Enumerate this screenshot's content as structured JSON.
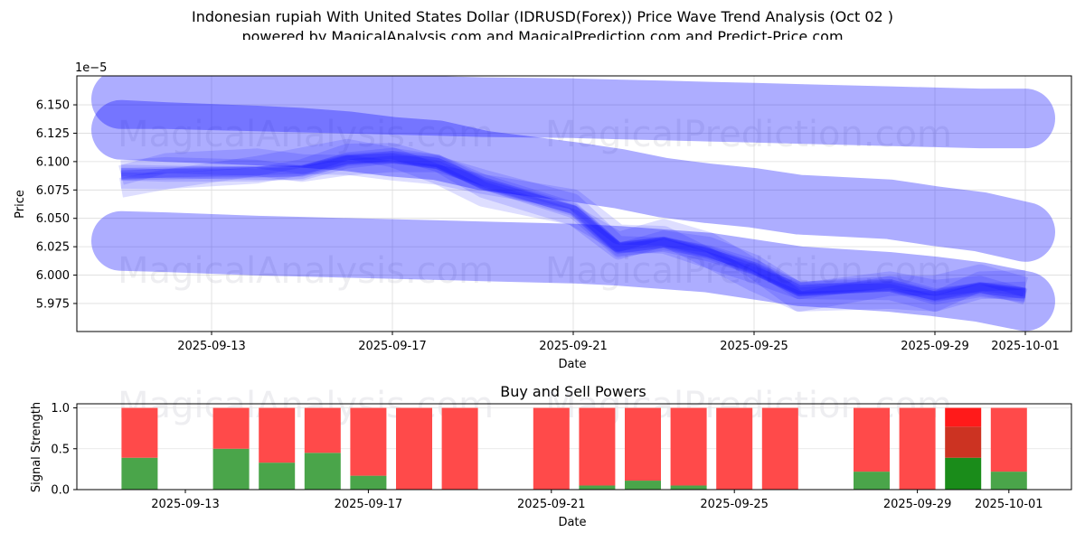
{
  "header": {
    "title": "Indonesian rupiah With United States Dollar (IDRUSD(Forex)) Price Wave Trend Analysis (Oct 02 )",
    "subtitle": "powered by MagicalAnalysis.com and MagicalPrediction.com and Predict-Price.com"
  },
  "watermarks": [
    "MagicalAnalysis.com",
    "MagicalPrediction.com"
  ],
  "colors": {
    "band": "#0000ff",
    "buy": "#4aa54a",
    "sell": "#ff4a4a",
    "buy_strong": "#1a8c1a",
    "sell_mid": "#cc3322",
    "sell_strong": "#ff1a1a"
  },
  "chart_data": [
    {
      "type": "area",
      "title": "",
      "xlabel": "Date",
      "ylabel": "Price",
      "y_scale_label": "1e−5",
      "ylim": [
        5.9503,
        6.1755
      ],
      "yticks": [
        5.975,
        6.0,
        6.025,
        6.05,
        6.075,
        6.1,
        6.125,
        6.15
      ],
      "ytick_labels": [
        "5.975",
        "6.000",
        "6.025",
        "6.050",
        "6.075",
        "6.100",
        "6.125",
        "6.150"
      ],
      "xlim": [
        "2025-09-10",
        "2025-10-02"
      ],
      "xticks": [
        "2025-09-13",
        "2025-09-17",
        "2025-09-21",
        "2025-09-25",
        "2025-09-29",
        "2025-10-01"
      ],
      "grid": true,
      "x_days": [
        "2025-09-11",
        "2025-09-12",
        "2025-09-14",
        "2025-09-15",
        "2025-09-16",
        "2025-09-17",
        "2025-09-18",
        "2025-09-19",
        "2025-09-21",
        "2025-09-22",
        "2025-09-23",
        "2025-09-24",
        "2025-09-25",
        "2025-09-26",
        "2025-09-28",
        "2025-09-29",
        "2025-09-30",
        "2025-10-01"
      ],
      "series": [
        {
          "name": "upper-wave",
          "values": [
            6.155,
            6.155,
            6.153,
            6.152,
            6.151,
            6.15,
            6.149,
            6.148,
            6.147,
            6.146,
            6.145,
            6.144,
            6.143,
            6.142,
            6.14,
            6.139,
            6.138,
            6.138
          ]
        },
        {
          "name": "middle-wave",
          "values": [
            6.128,
            6.126,
            6.123,
            6.121,
            6.118,
            6.113,
            6.11,
            6.101,
            6.091,
            6.085,
            6.077,
            6.072,
            6.068,
            6.062,
            6.058,
            6.052,
            6.047,
            6.038
          ]
        },
        {
          "name": "lower-wave",
          "values": [
            6.03,
            6.029,
            6.026,
            6.025,
            6.024,
            6.023,
            6.022,
            6.021,
            6.019,
            6.017,
            6.014,
            6.011,
            6.005,
            5.999,
            5.994,
            5.99,
            5.985,
            5.977
          ]
        },
        {
          "name": "price-core",
          "values": [
            6.088,
            6.09,
            6.092,
            6.093,
            6.102,
            6.103,
            6.097,
            6.08,
            6.058,
            6.025,
            6.03,
            6.02,
            6.005,
            5.985,
            5.99,
            5.982,
            5.99,
            5.985
          ]
        }
      ]
    },
    {
      "type": "bar",
      "title": "Buy and Sell Powers",
      "xlabel": "Date",
      "ylabel": "Signal Strength",
      "ylim": [
        0,
        1.05
      ],
      "yticks": [
        0.0,
        0.5,
        1.0
      ],
      "ytick_labels": [
        "0.0",
        "0.5",
        "1.0"
      ],
      "xticks": [
        "2025-09-13",
        "2025-09-17",
        "2025-09-21",
        "2025-09-25",
        "2025-09-29",
        "2025-10-01"
      ],
      "grid": true,
      "categories": [
        "2025-09-12",
        "2025-09-14",
        "2025-09-15",
        "2025-09-16",
        "2025-09-17",
        "2025-09-18",
        "2025-09-19",
        "2025-09-21",
        "2025-09-22",
        "2025-09-23",
        "2025-09-24",
        "2025-09-25",
        "2025-09-26",
        "2025-09-28",
        "2025-09-29",
        "2025-09-30",
        "2025-10-01"
      ],
      "series": [
        {
          "name": "Buy",
          "values": [
            0.39,
            0.5,
            0.33,
            0.45,
            0.17,
            0.0,
            0.0,
            0.0,
            0.05,
            0.11,
            0.05,
            0.0,
            0.0,
            0.22,
            0.0,
            0.39,
            0.22
          ]
        },
        {
          "name": "Sell",
          "values": [
            0.61,
            0.5,
            0.67,
            0.55,
            0.83,
            1.0,
            1.0,
            1.0,
            0.95,
            0.89,
            0.95,
            1.0,
            1.0,
            0.78,
            1.0,
            0.61,
            0.78
          ]
        }
      ],
      "highlight": {
        "category": "2025-09-30",
        "segments": [
          {
            "name": "strong-buy",
            "from": 0.0,
            "to": 0.39
          },
          {
            "name": "mid-sell",
            "from": 0.39,
            "to": 0.77
          },
          {
            "name": "strong-sell",
            "from": 0.77,
            "to": 1.0
          }
        ]
      }
    }
  ]
}
